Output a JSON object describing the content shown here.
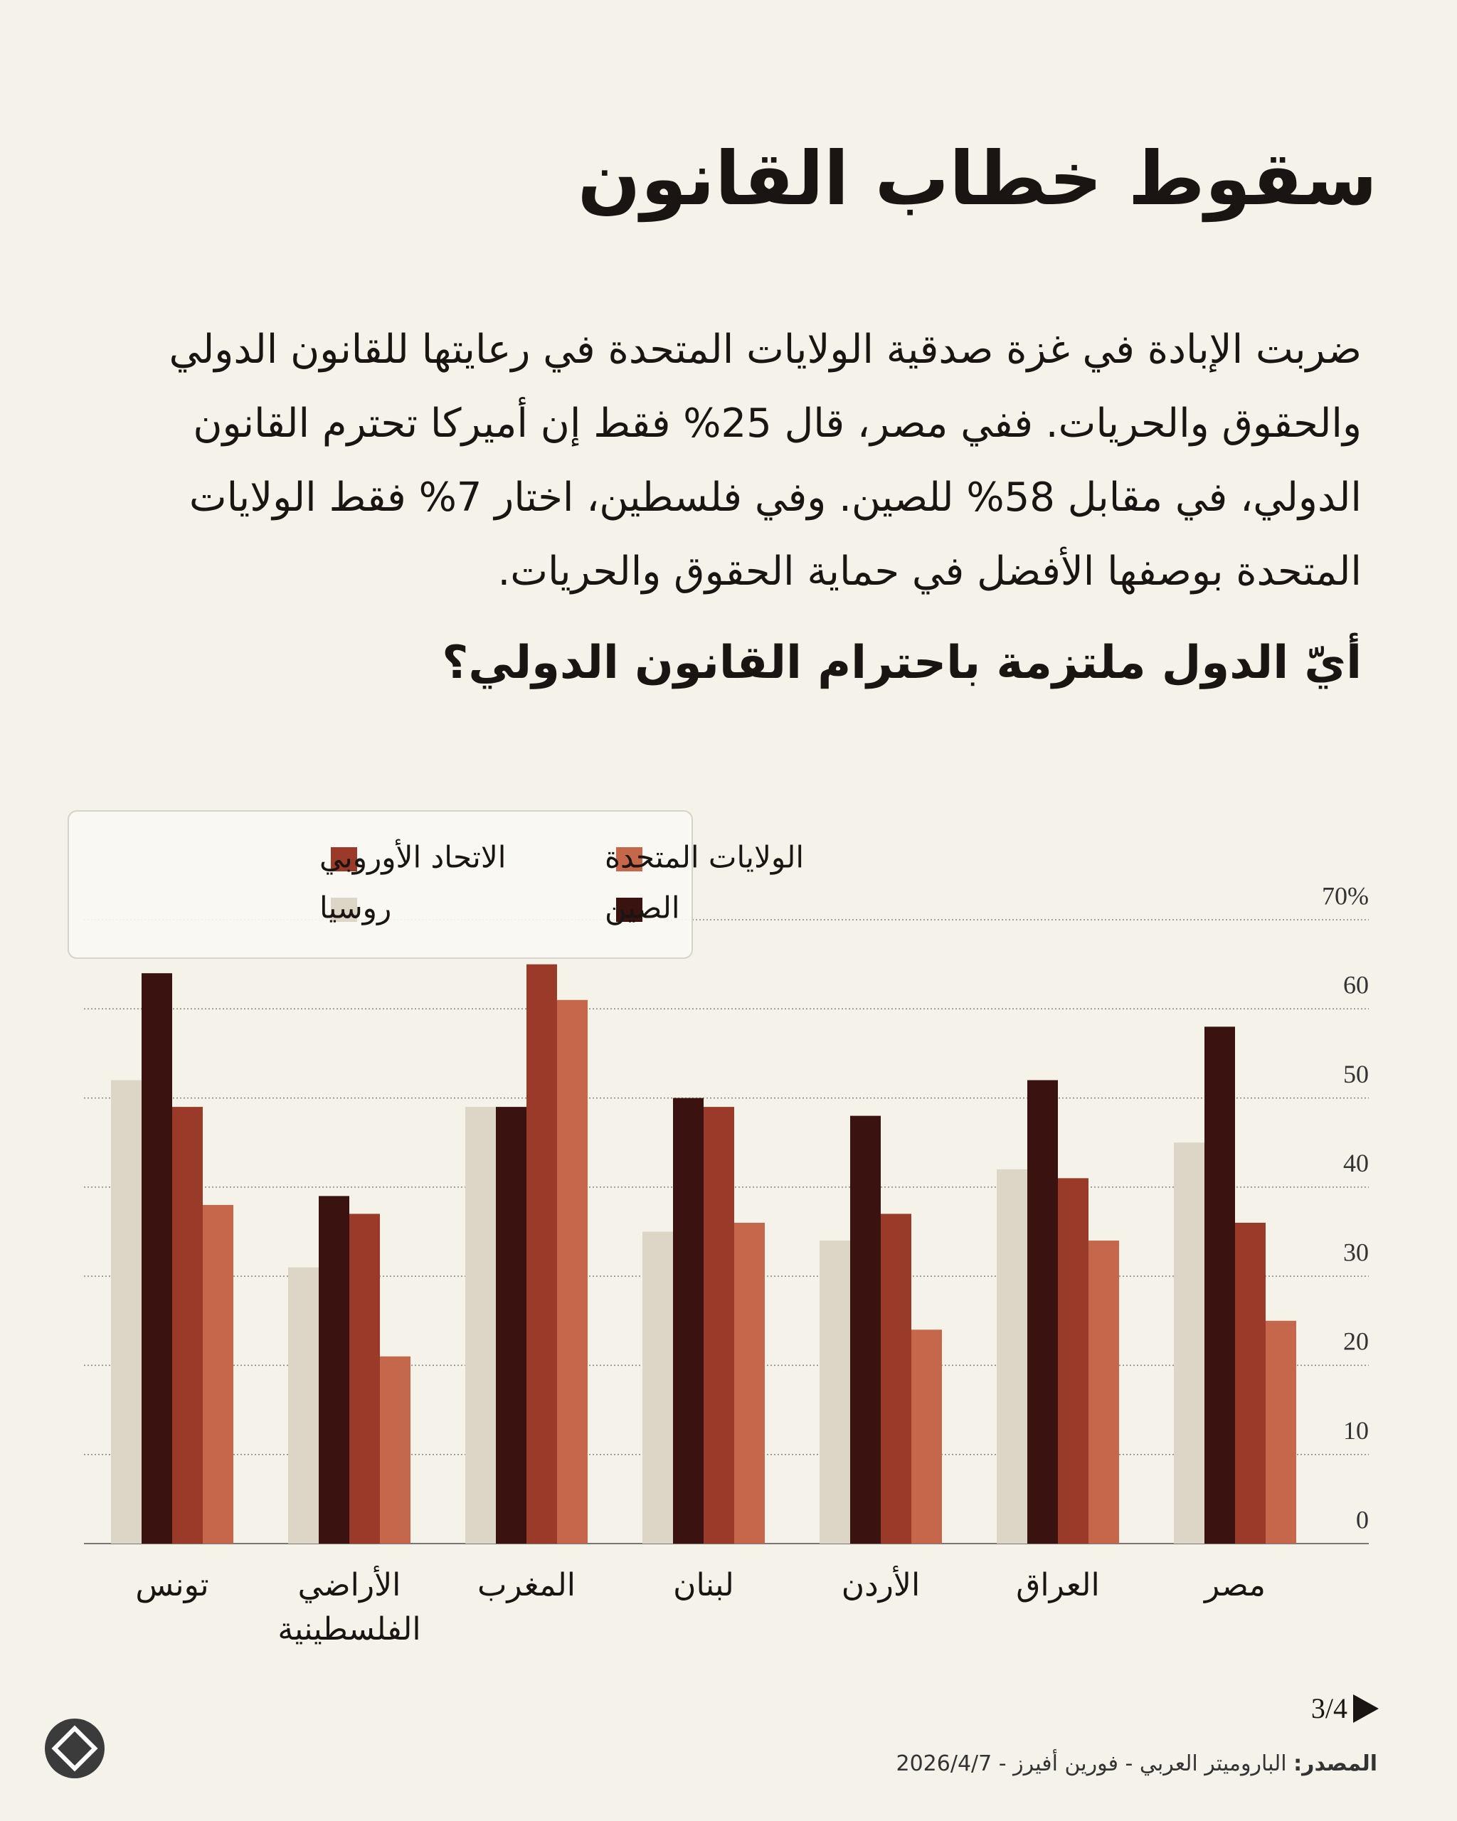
{
  "chart_data": {
    "type": "bar",
    "title": "سقوط خطاب القانون",
    "description": "ضربت الإبادة في غزة صدقية الولايات المتحدة في رعايتها للقانون الدولي والحقوق والحريات. ففي مصر، قال 25% فقط إن أميركا تحترم القانون الدولي، في مقابل 58% للصين. وفي فلسطين، اختار 7% فقط الولايات المتحدة بوصفها الأفضل في حماية الحقوق والحريات.",
    "subtitle": "أيّ الدول ملتزمة باحترام القانون الدولي؟",
    "categories": [
      "مصر",
      "العراق",
      "الأردن",
      "لبنان",
      "المغرب",
      "الأراضي الفلسطينية",
      "تونس"
    ],
    "series": [
      {
        "name": "الولايات المتحدة",
        "color": "#c4674a",
        "values": [
          25,
          34,
          24,
          36,
          61,
          21,
          38
        ]
      },
      {
        "name": "الاتحاد الأوروبي",
        "color": "#9a3a28",
        "values": [
          36,
          41,
          37,
          49,
          65,
          37,
          49
        ]
      },
      {
        "name": "الصين",
        "color": "#3a1210",
        "values": [
          58,
          52,
          48,
          50,
          49,
          39,
          64
        ]
      },
      {
        "name": "روسيا",
        "color": "#ddd5c6",
        "values": [
          45,
          42,
          34,
          35,
          49,
          31,
          52
        ]
      }
    ],
    "ylim": [
      0,
      70
    ],
    "yticks": [
      0,
      10,
      20,
      30,
      40,
      50,
      60,
      {
        "value": 70,
        "label": "70%"
      }
    ],
    "grid": true,
    "legend": "top-left"
  },
  "footer": {
    "page": "3/4",
    "source_label": "المصدر:",
    "source": "الباروميتر العربي - فورين أفيرز - 2026/4/7"
  }
}
